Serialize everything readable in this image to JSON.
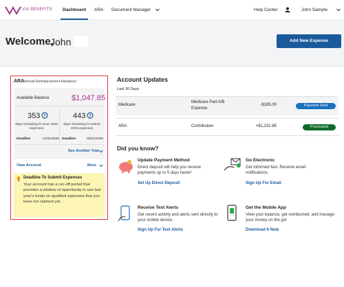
{
  "nav": {
    "logo": "VIA BENEFITS",
    "links": [
      "Dashboard",
      "ARA",
      "Document Manager"
    ],
    "help": "Help Center",
    "user": "John Sample"
  },
  "welcome": {
    "greeting": "Welcome,",
    "name": "John",
    "button": "Add New Expense"
  },
  "ara_card": {
    "title": "ARA",
    "subtitle": "Annual Reimbursement Allowance",
    "balance_label": "Available Balance",
    "balance": "$1,047.85",
    "stats": [
      {
        "days": "353",
        "label": "days remaining to incur 2025 expenses",
        "deadline_label": "Deadline",
        "deadline": "12/31/2025"
      },
      {
        "days": "443",
        "label": "days remaining to submit 2025 expenses",
        "deadline_label": "Deadline",
        "deadline": "03/31/2026"
      }
    ],
    "see_another_year": "See Another Year",
    "view_account": "View Account",
    "more": "More",
    "notice": {
      "title": "Deadline To Submit Expenses",
      "text": "Your account has a run-off period that provides a window of opportunity to use last year's funds on qualified expenses that you have not claimed yet."
    }
  },
  "account_updates": {
    "title": "Account Updates",
    "period": "Last 30 Days",
    "rows": [
      [
        "Medicare",
        "Medicare Part A/B Expense",
        "-$185.00",
        "Payment Sent"
      ],
      [
        "ARA",
        "Contribution",
        "+$1,232.85",
        "Processed"
      ]
    ]
  },
  "did_you_know": {
    "title": "Did you know?",
    "tiles": [
      {
        "title": "Update Payment Method",
        "text": "Direct deposit will help you receive payments up to 5 days faster!",
        "link": "Set Up Direct Deposit"
      },
      {
        "title": "Go Electronic",
        "text": "Get informed fast. Receive email notifications.",
        "link": "Sign Up For Email"
      },
      {
        "title": "Receive Text Alerts",
        "text": "Get recent activity and alerts sent directly to your mobile device.",
        "link": "Sign Up For Text Alerts"
      },
      {
        "title": "Get the Mobile App",
        "text": "View your balance, get reimbursed, and manage your money on the go!",
        "link": "Download It Now"
      }
    ]
  }
}
